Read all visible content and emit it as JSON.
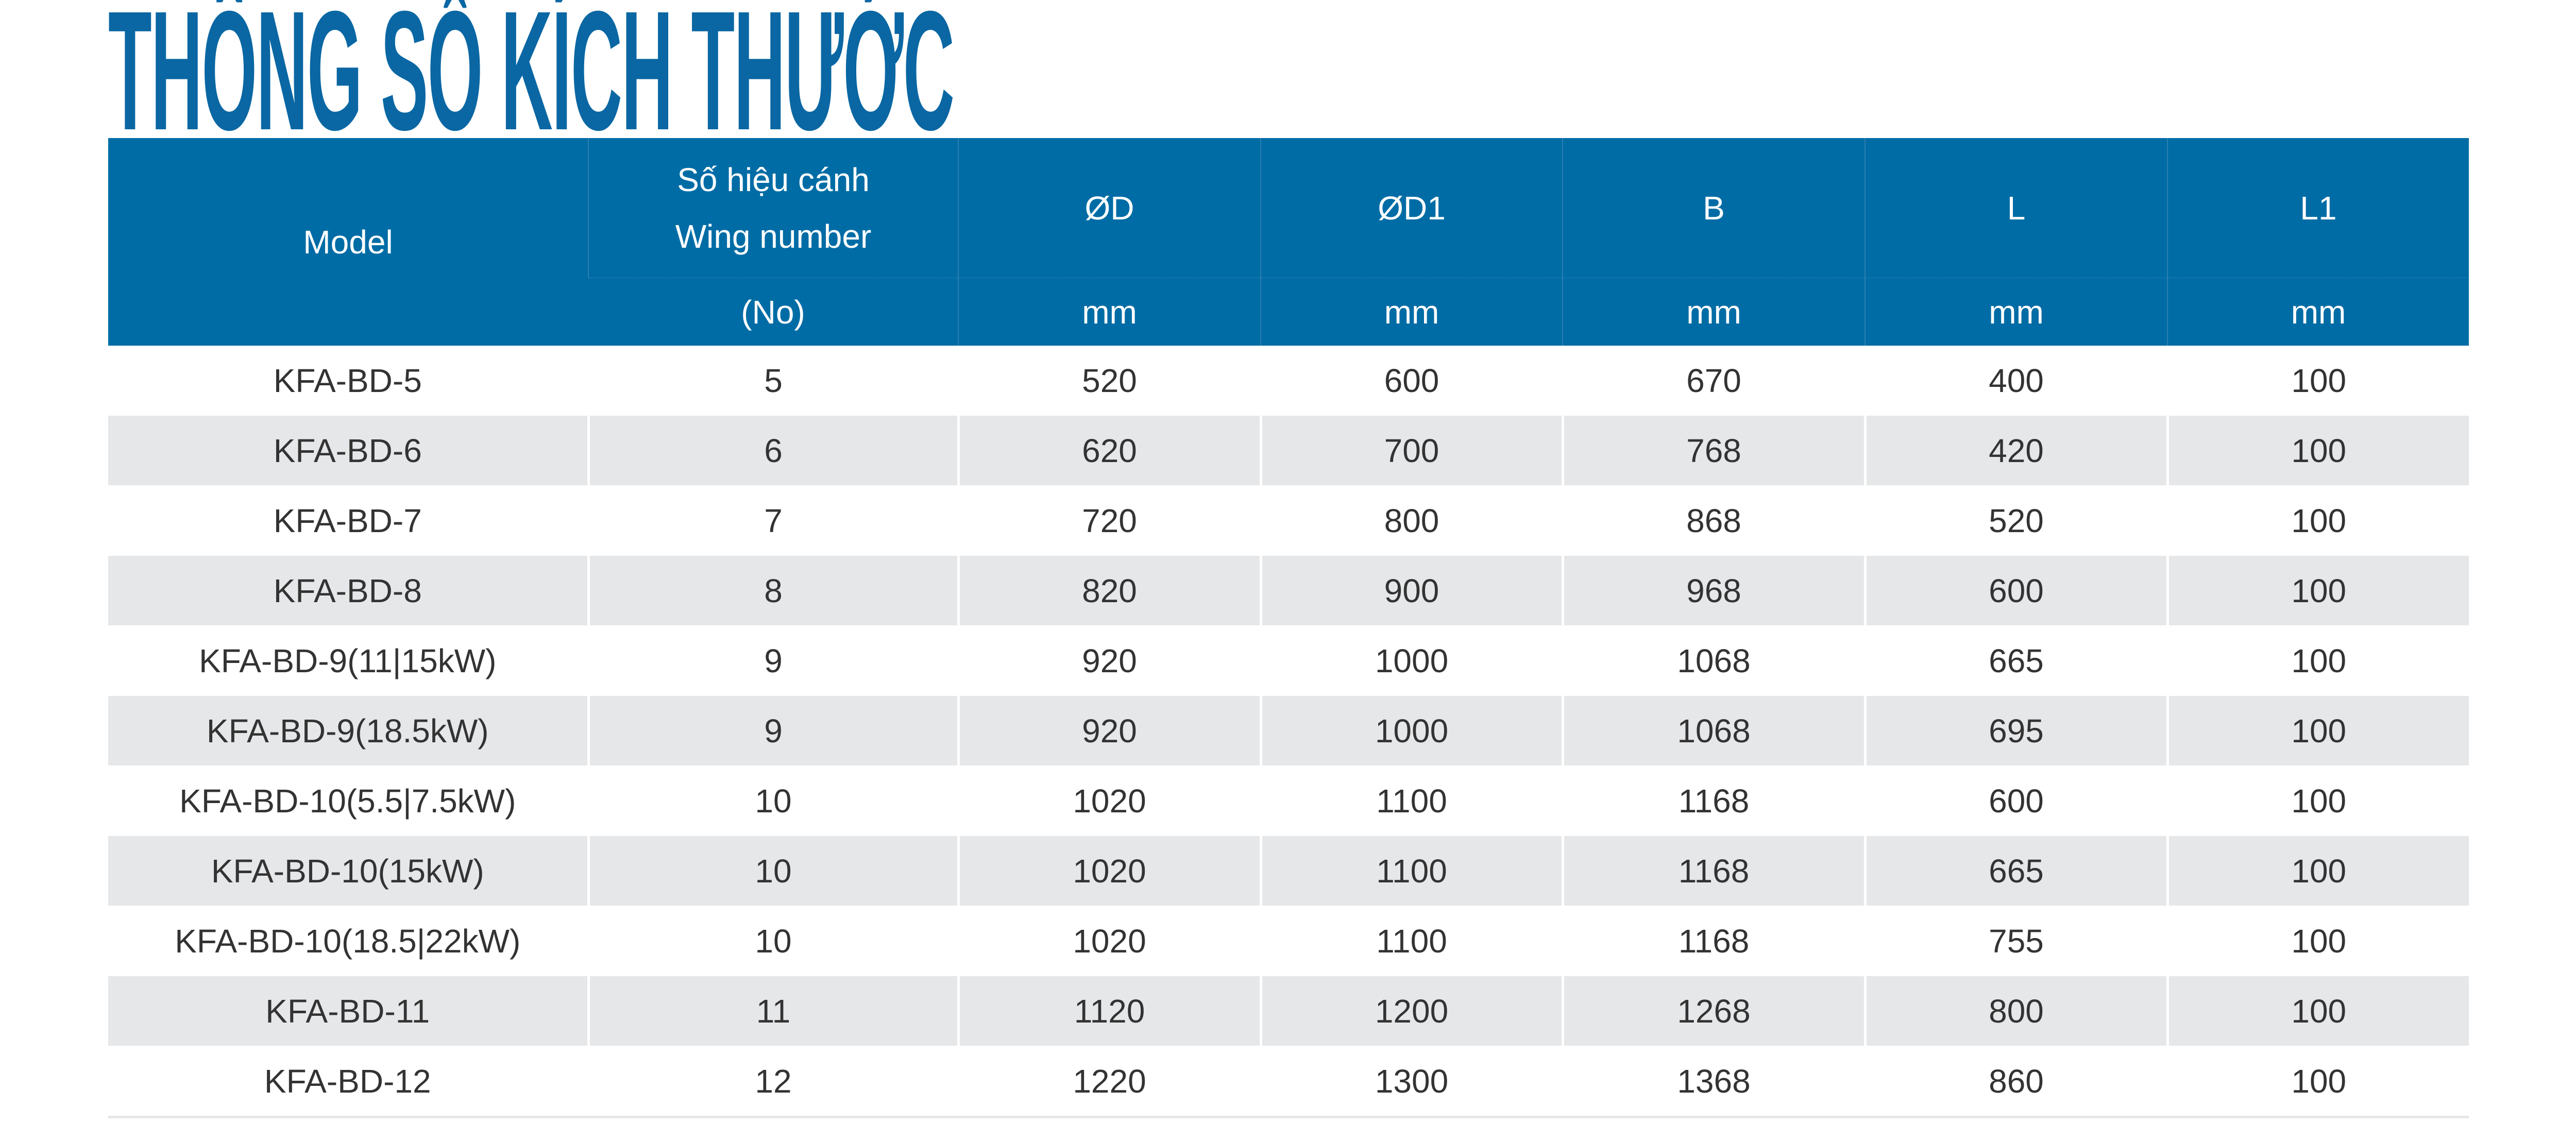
{
  "title": "THÔNG SỐ KÍCH THƯỚC",
  "colors": {
    "header_bg": "#006ca5",
    "title": "#0a67a3",
    "stripe": "#e6e7e9",
    "text": "#333333"
  },
  "table": {
    "headers": {
      "model": "Model",
      "wing_vi": "Số hiệu cánh",
      "wing_en": "Wing number",
      "wing_unit": "(No)",
      "d": "ØD",
      "d1": "ØD1",
      "b": "B",
      "l": "L",
      "l1": "L1",
      "unit": "mm"
    },
    "rows": [
      [
        "KFA-BD-5",
        "5",
        "520",
        "600",
        "670",
        "400",
        "100"
      ],
      [
        "KFA-BD-6",
        "6",
        "620",
        "700",
        "768",
        "420",
        "100"
      ],
      [
        "KFA-BD-7",
        "7",
        "720",
        "800",
        "868",
        "520",
        "100"
      ],
      [
        "KFA-BD-8",
        "8",
        "820",
        "900",
        "968",
        "600",
        "100"
      ],
      [
        "KFA-BD-9(11|15kW)",
        "9",
        "920",
        "1000",
        "1068",
        "665",
        "100"
      ],
      [
        "KFA-BD-9(18.5kW)",
        "9",
        "920",
        "1000",
        "1068",
        "695",
        "100"
      ],
      [
        "KFA-BD-10(5.5|7.5kW)",
        "10",
        "1020",
        "1100",
        "1168",
        "600",
        "100"
      ],
      [
        "KFA-BD-10(15kW)",
        "10",
        "1020",
        "1100",
        "1168",
        "665",
        "100"
      ],
      [
        "KFA-BD-10(18.5|22kW)",
        "10",
        "1020",
        "1100",
        "1168",
        "755",
        "100"
      ],
      [
        "KFA-BD-11",
        "11",
        "1120",
        "1200",
        "1268",
        "800",
        "100"
      ],
      [
        "KFA-BD-12",
        "12",
        "1220",
        "1300",
        "1368",
        "860",
        "100"
      ]
    ]
  }
}
